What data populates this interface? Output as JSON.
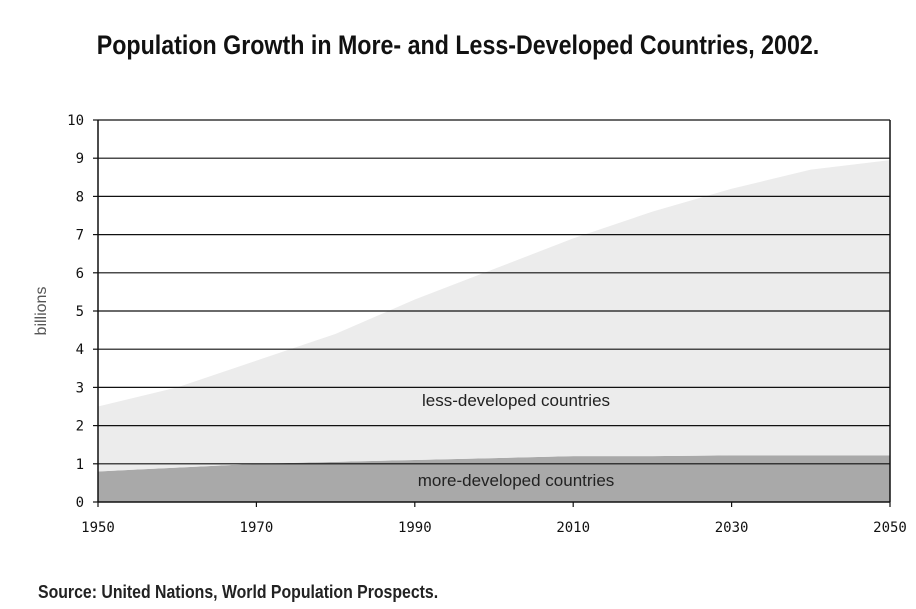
{
  "title": "Population Growth in More- and Less-Developed Countries, 2002.",
  "source": "Source: United Nations, World Population Prospects.",
  "chart_data": {
    "type": "area",
    "stacked": true,
    "title": "Population Growth in More- and Less-Developed Countries, 2002.",
    "xlabel": "",
    "ylabel": "billions",
    "xlim": [
      1950,
      2050
    ],
    "ylim": [
      0,
      10
    ],
    "x_ticks": [
      "1950",
      "1970",
      "1990",
      "2010",
      "2030",
      "2050"
    ],
    "y_ticks": [
      "0",
      "1",
      "2",
      "3",
      "4",
      "5",
      "6",
      "7",
      "8",
      "9",
      "10"
    ],
    "grid": "horizontal",
    "x": [
      1950,
      1960,
      1970,
      1980,
      1990,
      2000,
      2010,
      2020,
      2030,
      2040,
      2050
    ],
    "total": [
      2.5,
      3.0,
      3.7,
      4.4,
      5.3,
      6.1,
      6.9,
      7.6,
      8.2,
      8.7,
      8.95
    ],
    "series": [
      {
        "name": "more-developed countries",
        "values": [
          0.8,
          0.9,
          1.0,
          1.05,
          1.1,
          1.15,
          1.2,
          1.2,
          1.22,
          1.22,
          1.22
        ],
        "color": "#a9a9a9"
      },
      {
        "name": "less-developed countries",
        "values": [
          1.7,
          2.1,
          2.7,
          3.35,
          4.2,
          4.95,
          5.7,
          6.4,
          6.98,
          7.48,
          7.73
        ],
        "color": "#ececec"
      }
    ]
  }
}
